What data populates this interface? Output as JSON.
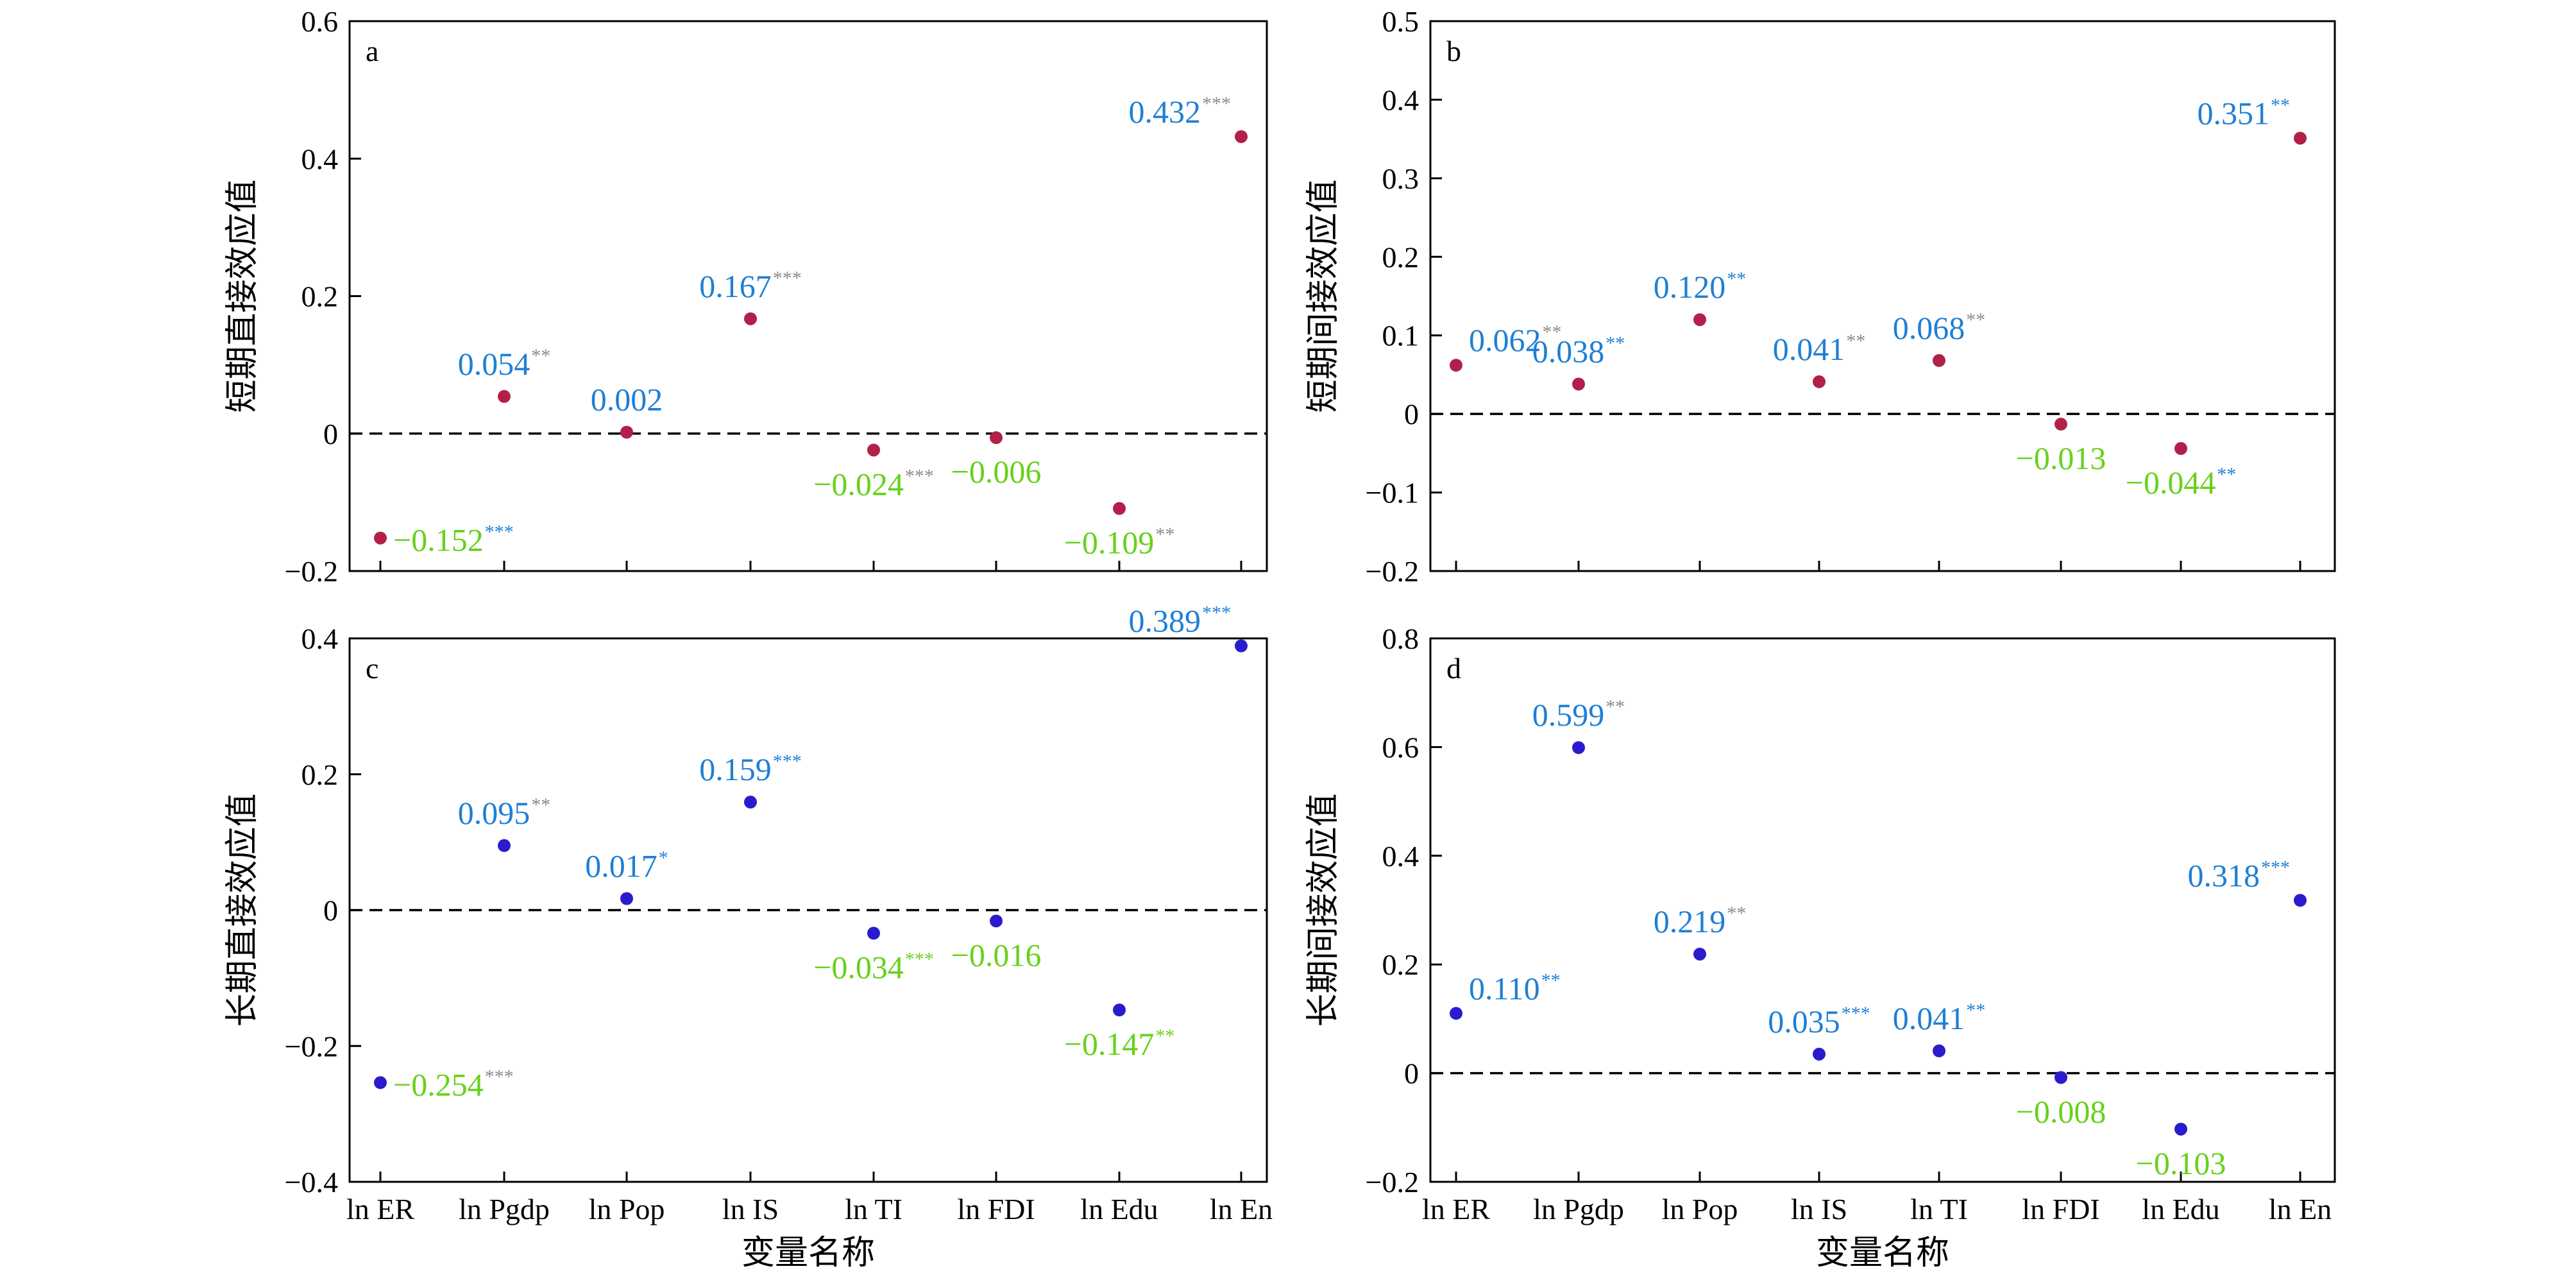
{
  "colors": {
    "positive_label": "#1f7fd4",
    "negative_label": "#66d11a",
    "stars_muted": "#8a8a8a",
    "stars_blue": "#1f7fd4",
    "stars_green": "#66d11a",
    "point_short": "#b2204a",
    "point_long": "#2a1ccc"
  },
  "chart_data": [
    {
      "type": "scatter",
      "panel": "a",
      "ylabel": "短期直接效应值",
      "xlabel": "",
      "categories": [
        "ln ER",
        "ln Pgdp",
        "ln Pop",
        "ln IS",
        "ln TI",
        "ln FDI",
        "ln Edu",
        "ln En"
      ],
      "values": [
        -0.152,
        0.054,
        0.002,
        0.167,
        -0.024,
        -0.006,
        -0.109,
        0.432
      ],
      "labels": [
        "−0.152",
        "0.054",
        "0.002",
        "0.167",
        "−0.024",
        "−0.006",
        "−0.109",
        "0.432"
      ],
      "stars": [
        "***",
        "**",
        "",
        "***",
        "***",
        "",
        "**",
        "***"
      ],
      "star_style": [
        "blue",
        "muted",
        "",
        "muted",
        "muted",
        "",
        "muted",
        "muted"
      ],
      "yticks": [
        -0.2,
        0,
        0.2,
        0.4,
        0.6
      ],
      "ytick_labels": [
        "−0.2",
        "0",
        "0.2",
        "0.4",
        "0.6"
      ],
      "ylim": [
        -0.2,
        0.6
      ],
      "show_xtick_labels": false,
      "reference_line": 0
    },
    {
      "type": "scatter",
      "panel": "b",
      "ylabel": "短期间接效应值",
      "xlabel": "",
      "categories": [
        "ln ER",
        "ln Pgdp",
        "ln Pop",
        "ln IS",
        "ln TI",
        "ln FDI",
        "ln Edu",
        "ln En"
      ],
      "values": [
        0.062,
        0.038,
        0.12,
        0.041,
        0.068,
        -0.013,
        -0.044,
        0.351
      ],
      "labels": [
        "0.062",
        "0.038",
        "0.120",
        "0.041",
        "0.068",
        "−0.013",
        "−0.044",
        "0.351"
      ],
      "stars": [
        "**",
        "**",
        "**",
        "**",
        "**",
        "",
        "**",
        "**"
      ],
      "star_style": [
        "muted",
        "blue",
        "blue",
        "muted",
        "muted",
        "",
        "blue",
        "blue"
      ],
      "yticks": [
        -0.2,
        -0.1,
        0,
        0.1,
        0.2,
        0.3,
        0.4,
        0.5
      ],
      "ytick_labels": [
        "−0.2",
        "−0.1",
        "0",
        "0.1",
        "0.2",
        "0.3",
        "0.4",
        "0.5"
      ],
      "ylim": [
        -0.2,
        0.5
      ],
      "show_xtick_labels": false,
      "reference_line": 0
    },
    {
      "type": "scatter",
      "panel": "c",
      "ylabel": "长期直接效应值",
      "xlabel": "变量名称",
      "categories": [
        "ln ER",
        "ln Pgdp",
        "ln Pop",
        "ln IS",
        "ln TI",
        "ln FDI",
        "ln Edu",
        "ln En"
      ],
      "values": [
        -0.254,
        0.095,
        0.017,
        0.159,
        -0.034,
        -0.016,
        -0.147,
        0.389
      ],
      "labels": [
        "−0.254",
        "0.095",
        "0.017",
        "0.159",
        "−0.034",
        "−0.016",
        "−0.147",
        "0.389"
      ],
      "stars": [
        "***",
        "**",
        "*",
        "***",
        "***",
        "",
        "**",
        "***"
      ],
      "star_style": [
        "muted",
        "muted",
        "blue",
        "blue",
        "green",
        "",
        "green",
        "blue"
      ],
      "yticks": [
        -0.4,
        -0.2,
        0,
        0.2,
        0.4
      ],
      "ytick_labels": [
        "−0.4",
        "−0.2",
        "0",
        "0.2",
        "0.4"
      ],
      "ylim": [
        -0.4,
        0.4
      ],
      "show_xtick_labels": true,
      "reference_line": 0
    },
    {
      "type": "scatter",
      "panel": "d",
      "ylabel": "长期间接效应值",
      "xlabel": "变量名称",
      "categories": [
        "ln ER",
        "ln Pgdp",
        "ln Pop",
        "ln IS",
        "ln TI",
        "ln FDI",
        "ln Edu",
        "ln En"
      ],
      "values": [
        0.11,
        0.599,
        0.219,
        0.035,
        0.041,
        -0.008,
        -0.103,
        0.318
      ],
      "labels": [
        "0.110",
        "0.599",
        "0.219",
        "0.035",
        "0.041",
        "−0.008",
        "−0.103",
        "0.318"
      ],
      "stars": [
        "**",
        "**",
        "**",
        "***",
        "**",
        "",
        "",
        "***"
      ],
      "star_style": [
        "blue",
        "muted",
        "muted",
        "blue",
        "blue",
        "",
        "",
        "blue"
      ],
      "yticks": [
        -0.2,
        0,
        0.2,
        0.4,
        0.6,
        0.8
      ],
      "ytick_labels": [
        "−0.2",
        "0",
        "0.2",
        "0.4",
        "0.6",
        "0.8"
      ],
      "ylim": [
        -0.2,
        0.8
      ],
      "show_xtick_labels": true,
      "reference_line": 0
    }
  ]
}
